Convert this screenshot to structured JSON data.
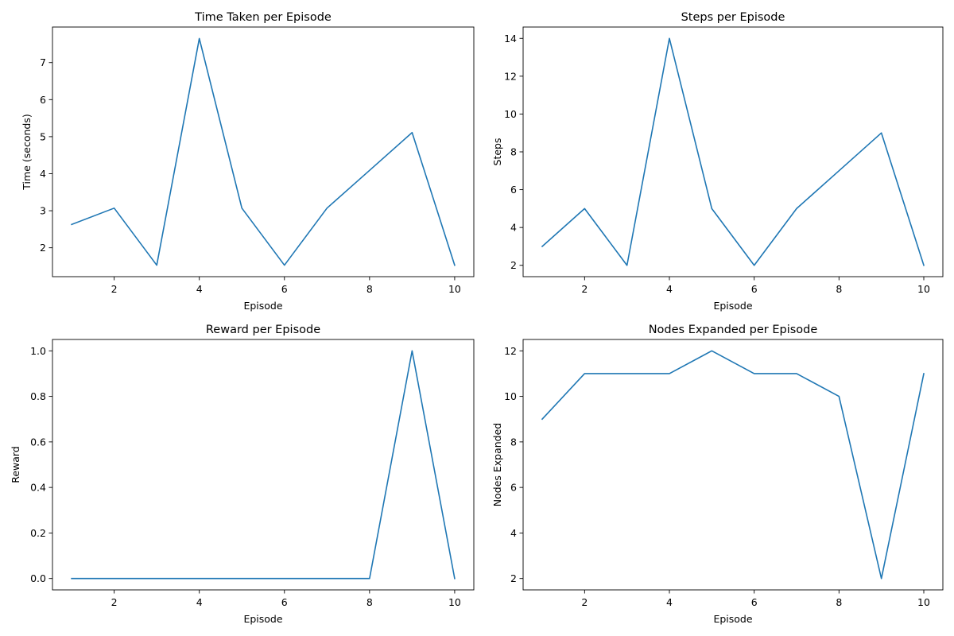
{
  "chart_data": [
    {
      "type": "line",
      "title": "Time Taken per Episode",
      "xlabel": "Episode",
      "ylabel": "Time (seconds)",
      "x": [
        1,
        2,
        3,
        4,
        5,
        6,
        7,
        8,
        9,
        10
      ],
      "series": [
        {
          "values": [
            2.63,
            3.07,
            1.53,
            7.65,
            3.07,
            1.53,
            3.07,
            4.09,
            5.11,
            1.53
          ],
          "color": "#1f77b4"
        }
      ],
      "xlim": [
        0.55,
        10.45
      ],
      "ylim": [
        1.22,
        7.96
      ],
      "xticks": [
        2,
        4,
        6,
        8,
        10
      ],
      "yticks": [
        2,
        3,
        4,
        5,
        6,
        7
      ],
      "grid": false,
      "legend": "none"
    },
    {
      "type": "line",
      "title": "Steps per Episode",
      "xlabel": "Episode",
      "ylabel": "Steps",
      "x": [
        1,
        2,
        3,
        4,
        5,
        6,
        7,
        8,
        9,
        10
      ],
      "series": [
        {
          "values": [
            3,
            5,
            2,
            14,
            5,
            2,
            5,
            7,
            9,
            2
          ],
          "color": "#1f77b4"
        }
      ],
      "xlim": [
        0.55,
        10.45
      ],
      "ylim": [
        1.4,
        14.6
      ],
      "xticks": [
        2,
        4,
        6,
        8,
        10
      ],
      "yticks": [
        2,
        4,
        6,
        8,
        10,
        12,
        14
      ],
      "grid": false,
      "legend": "none"
    },
    {
      "type": "line",
      "title": "Reward per Episode",
      "xlabel": "Episode",
      "ylabel": "Reward",
      "x": [
        1,
        2,
        3,
        4,
        5,
        6,
        7,
        8,
        9,
        10
      ],
      "series": [
        {
          "values": [
            0,
            0,
            0,
            0,
            0,
            0,
            0,
            0,
            1,
            0
          ],
          "color": "#1f77b4"
        }
      ],
      "xlim": [
        0.55,
        10.45
      ],
      "ylim": [
        -0.05,
        1.05
      ],
      "xticks": [
        2,
        4,
        6,
        8,
        10
      ],
      "yticks": [
        0.0,
        0.2,
        0.4,
        0.6,
        0.8,
        1.0
      ],
      "ytick_labels": [
        "0.0",
        "0.2",
        "0.4",
        "0.6",
        "0.8",
        "1.0"
      ],
      "grid": false,
      "legend": "none"
    },
    {
      "type": "line",
      "title": "Nodes Expanded per Episode",
      "xlabel": "Episode",
      "ylabel": "Nodes Expanded",
      "x": [
        1,
        2,
        3,
        4,
        5,
        6,
        7,
        8,
        9,
        10
      ],
      "series": [
        {
          "values": [
            9,
            11,
            11,
            11,
            12,
            11,
            11,
            10,
            2,
            11
          ],
          "color": "#1f77b4"
        }
      ],
      "xlim": [
        0.55,
        10.45
      ],
      "ylim": [
        1.5,
        12.5
      ],
      "xticks": [
        2,
        4,
        6,
        8,
        10
      ],
      "yticks": [
        2,
        4,
        6,
        8,
        10,
        12
      ],
      "grid": false,
      "legend": "none"
    }
  ]
}
